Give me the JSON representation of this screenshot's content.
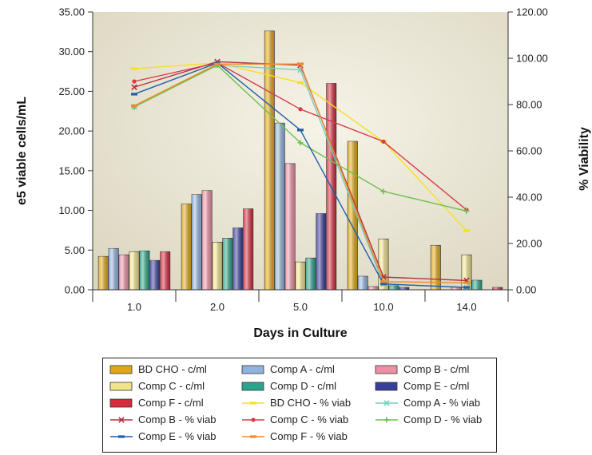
{
  "chart_data": {
    "type": "bar",
    "xlabel": "Days in Culture",
    "ylabel": "e5 viable cells/mL",
    "y2label": "% Viability",
    "categories": [
      "1.0",
      "2.0",
      "5.0",
      "10.0",
      "14.0"
    ],
    "ylim": [
      0,
      35
    ],
    "y2lim": [
      0,
      120
    ],
    "yticks": [
      "0.00",
      "5.00",
      "10.00",
      "15.00",
      "20.00",
      "25.00",
      "30.00",
      "35.00"
    ],
    "y2ticks": [
      "0.00",
      "20.00",
      "40.00",
      "60.00",
      "80.00",
      "100.00",
      "120.00"
    ],
    "bar_series": [
      {
        "name": "BD CHO - c/ml",
        "color": "#e0a814",
        "values": [
          4.2,
          10.8,
          32.6,
          18.7,
          5.6
        ]
      },
      {
        "name": "Comp A - c/ml",
        "color": "#8fb3df",
        "values": [
          5.2,
          12.0,
          21.0,
          1.7,
          0
        ]
      },
      {
        "name": "Comp B - c/ml",
        "color": "#ee90a4",
        "values": [
          4.4,
          12.5,
          15.9,
          0.4,
          0.3
        ]
      },
      {
        "name": "Comp C - c/ml",
        "color": "#f2e48a",
        "values": [
          4.8,
          6.0,
          3.5,
          6.4,
          4.4
        ]
      },
      {
        "name": "Comp D - c/ml",
        "color": "#2aa58c",
        "values": [
          4.9,
          6.5,
          4.0,
          0.5,
          1.2
        ]
      },
      {
        "name": "Comp E - c/ml",
        "color": "#3a3f9c",
        "values": [
          3.7,
          7.8,
          9.6,
          0.3,
          0
        ]
      },
      {
        "name": "Comp F - c/ml",
        "color": "#d62a3e",
        "values": [
          4.8,
          10.2,
          26.0,
          0,
          0.3
        ]
      }
    ],
    "line_series": [
      {
        "name": "BD CHO - % viab",
        "color": "#f5e020",
        "marker": "dash",
        "values": [
          95.5,
          98.0,
          89.5,
          64.0,
          25.5
        ]
      },
      {
        "name": "Comp A - % viab",
        "color": "#6fd0c4",
        "marker": "x",
        "values": [
          79.0,
          97.0,
          95.0,
          2.5,
          1.0
        ]
      },
      {
        "name": "Comp B - % viab",
        "color": "#b03040",
        "marker": "x",
        "values": [
          87.5,
          98.5,
          97.0,
          5.5,
          4.0
        ]
      },
      {
        "name": "Comp C - % viab",
        "color": "#d83a4a",
        "marker": "dot",
        "values": [
          90.0,
          98.0,
          78.0,
          64.0,
          34.5
        ]
      },
      {
        "name": "Comp D - % viab",
        "color": "#6cc04a",
        "marker": "plus",
        "values": [
          79.0,
          97.0,
          63.5,
          42.5,
          34.0
        ]
      },
      {
        "name": "Comp E - % viab",
        "color": "#1f5fa8",
        "marker": "dash",
        "values": [
          84.5,
          98.0,
          69.0,
          2.5,
          1.0
        ]
      },
      {
        "name": "Comp F - % viab",
        "color": "#f08a30",
        "marker": "dash",
        "values": [
          79.5,
          97.5,
          97.5,
          3.5,
          3.0
        ]
      }
    ],
    "grid": false,
    "legend_position": "bottom"
  }
}
